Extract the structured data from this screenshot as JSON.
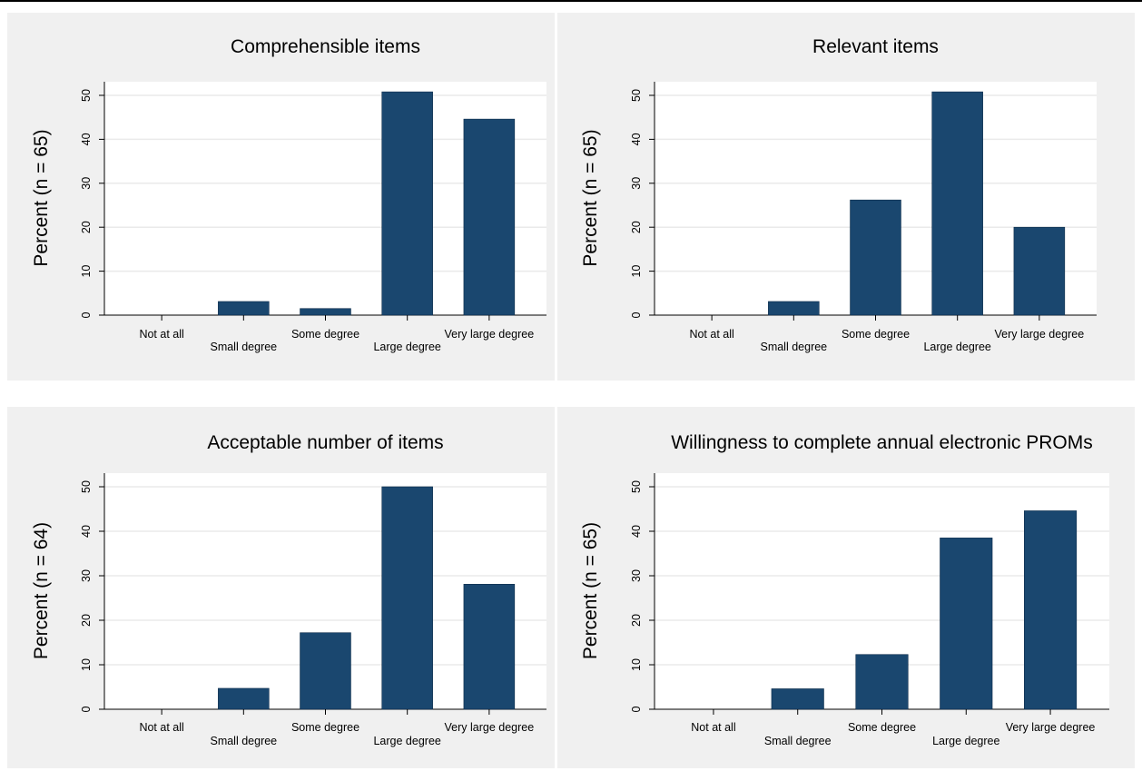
{
  "colors": {
    "panel_background": "#f0f0f0",
    "plot_background": "#ffffff",
    "bar_fill": "#1a476f",
    "gridline": "#eaeaea"
  },
  "chart_data": [
    {
      "type": "bar",
      "title": "Comprehensible items",
      "ylabel": "Percent (n = 65)",
      "xlabel": "",
      "categories": [
        "Not at all",
        "Small degree",
        "Some degree",
        "Large degree",
        "Very large degree"
      ],
      "values": [
        0,
        3.1,
        1.5,
        50.8,
        44.6
      ],
      "ylim": [
        0,
        50
      ],
      "yticks": [
        "0",
        "10",
        "20",
        "30",
        "40",
        "50"
      ],
      "grid": true,
      "legend": "none"
    },
    {
      "type": "bar",
      "title": "Relevant items",
      "ylabel": "Percent (n = 65)",
      "xlabel": "",
      "categories": [
        "Not at all",
        "Small degree",
        "Some degree",
        "Large degree",
        "Very large degree"
      ],
      "values": [
        0,
        3.1,
        26.2,
        50.8,
        20.0
      ],
      "ylim": [
        0,
        50
      ],
      "yticks": [
        "0",
        "10",
        "20",
        "30",
        "40",
        "50"
      ],
      "grid": true,
      "legend": "none"
    },
    {
      "type": "bar",
      "title": "Acceptable number of items",
      "ylabel": "Percent (n = 64)",
      "xlabel": "",
      "categories": [
        "Not at all",
        "Small degree",
        "Some degree",
        "Large degree",
        "Very large degree"
      ],
      "values": [
        0,
        4.7,
        17.2,
        50.0,
        28.1
      ],
      "ylim": [
        0,
        50
      ],
      "yticks": [
        "0",
        "10",
        "20",
        "30",
        "40",
        "50"
      ],
      "grid": true,
      "legend": "none"
    },
    {
      "type": "bar",
      "title": "Willingness to complete annual electronic PROMs",
      "ylabel": "Percent (n = 65)",
      "xlabel": "",
      "categories": [
        "Not at all",
        "Small degree",
        "Some degree",
        "Large degree",
        "Very large degree"
      ],
      "values": [
        0,
        4.6,
        12.3,
        38.5,
        44.6
      ],
      "ylim": [
        0,
        50
      ],
      "yticks": [
        "0",
        "10",
        "20",
        "30",
        "40",
        "50"
      ],
      "grid": true,
      "legend": "none"
    }
  ]
}
